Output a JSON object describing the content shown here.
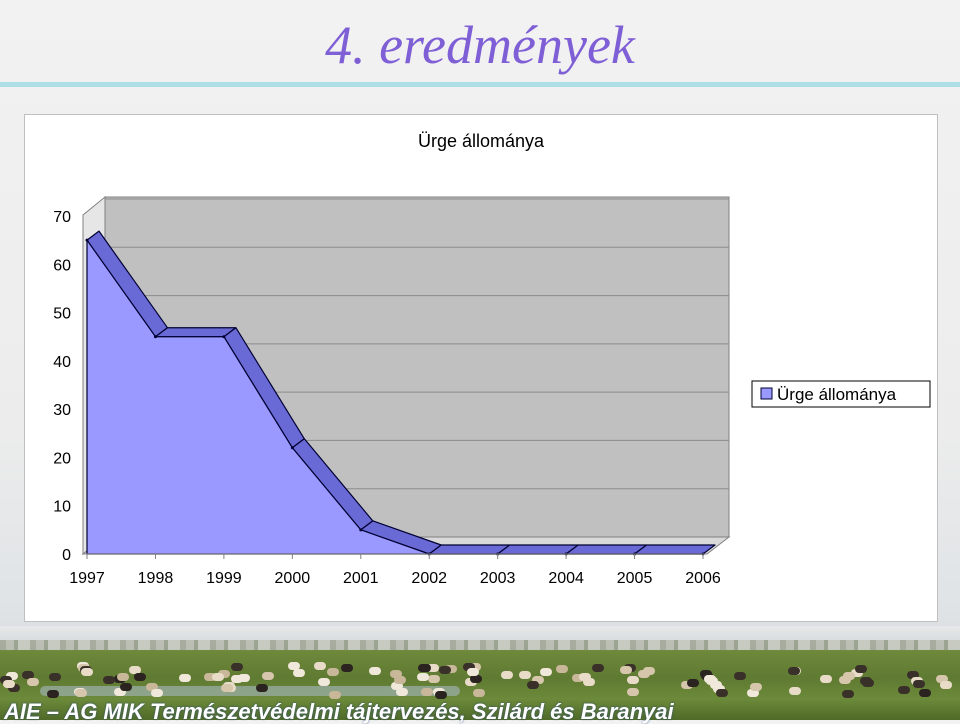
{
  "slide": {
    "title": "4. eredmények",
    "footer_text": "AIE – AG MIK  Természetvédelmi tájtervezés, Szilárd és Baranyai"
  },
  "colors": {
    "title": "#7f5fd6",
    "area_fill": "#9999ff",
    "area_edge": "#6a6ad6",
    "plot_wall": "#c0c0c0",
    "rule": "#aedfe6"
  },
  "chart_data": {
    "type": "area",
    "title": "Ürge állománya",
    "categories": [
      "1997",
      "1998",
      "1999",
      "2000",
      "2001",
      "2002",
      "2003",
      "2004",
      "2005",
      "2006"
    ],
    "series": [
      {
        "name": "Ürge állománya",
        "values": [
          65,
          45,
          45,
          22,
          5,
          0,
          0,
          0,
          0,
          0
        ]
      }
    ],
    "yticks": [
      "0",
      "10",
      "20",
      "30",
      "40",
      "50",
      "60",
      "70"
    ],
    "ylim": [
      0,
      70
    ],
    "grid": true,
    "legend": "right",
    "style": "3d-area"
  }
}
